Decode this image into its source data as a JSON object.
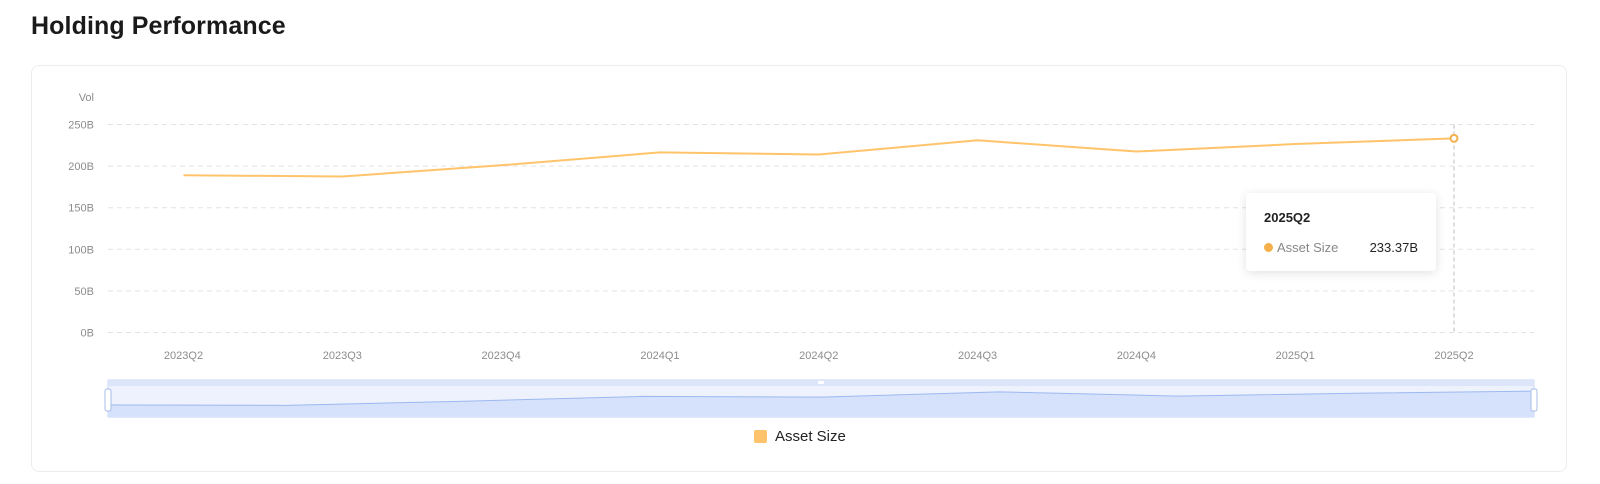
{
  "page": {
    "title": "Holding Performance"
  },
  "colors": {
    "series": "#FFC46B",
    "series_marker": "#F5B04B",
    "grid": "#E3E3E3",
    "axis_text": "#8C8C8C",
    "slider_fill": "#D6E2FC",
    "slider_line": "#9DB8F0",
    "slider_border": "#C7D6F8"
  },
  "chart_data": {
    "type": "line",
    "ylabel": "Vol",
    "categories": [
      "2023Q2",
      "2023Q3",
      "2023Q4",
      "2024Q1",
      "2024Q2",
      "2024Q3",
      "2024Q4",
      "2025Q1",
      "2025Q2"
    ],
    "yticks": [
      "0B",
      "50B",
      "100B",
      "150B",
      "200B",
      "250B"
    ],
    "ylim": [
      0,
      250
    ],
    "grid": true,
    "series": [
      {
        "name": "Asset Size",
        "values": [
          189,
          187.5,
          201,
          216.5,
          214,
          231,
          217.5,
          226.5,
          233.37
        ]
      }
    ],
    "highlight_index": 8,
    "legend_position": "bottom",
    "data_zoom": true
  },
  "tooltip": {
    "title": "2025Q2",
    "series_name": "Asset Size",
    "value": "233.37B"
  },
  "legend": {
    "items": [
      {
        "label": "Asset Size"
      }
    ]
  }
}
